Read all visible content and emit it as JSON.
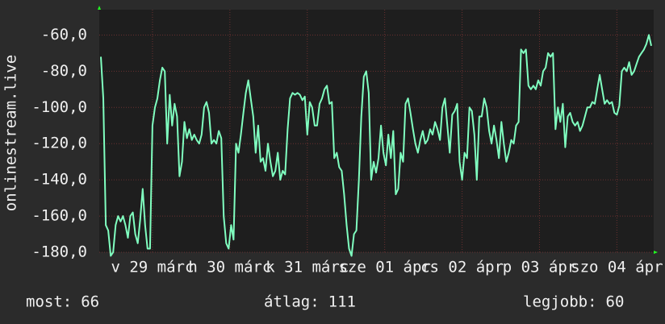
{
  "chart_data": {
    "type": "line",
    "y_label": "onlinestream.live",
    "color": "#80ffc0",
    "ylim": [
      -180,
      -46
    ],
    "yticks": [
      {
        "value": -60,
        "label": "-60,0"
      },
      {
        "value": -80,
        "label": "-80,0"
      },
      {
        "value": -100,
        "label": "-100,0"
      },
      {
        "value": -120,
        "label": "-120,0"
      },
      {
        "value": -140,
        "label": "-140,0"
      },
      {
        "value": -160,
        "label": "-160,0"
      },
      {
        "value": -180,
        "label": "-180,0"
      }
    ],
    "xlim": [
      0,
      224
    ],
    "xticks": [
      {
        "value": 21,
        "label": "v 29 márc"
      },
      {
        "value": 52.5,
        "label": "h 30 márc"
      },
      {
        "value": 84,
        "label": "k 31 márc"
      },
      {
        "value": 115.5,
        "label": "sze 01 ápr"
      },
      {
        "value": 147,
        "label": "cs 02 ápr"
      },
      {
        "value": 178.5,
        "label": "p 03 ápr"
      },
      {
        "value": 210,
        "label": "szo 04 ápr"
      }
    ],
    "grid": true,
    "values": [
      -72,
      -95,
      -165,
      -168,
      -182,
      -180,
      -165,
      -160,
      -163,
      -160,
      -165,
      -172,
      -160,
      -158,
      -170,
      -175,
      -162,
      -145,
      -165,
      -178,
      -178,
      -110,
      -100,
      -95,
      -85,
      -78,
      -80,
      -120,
      -93,
      -110,
      -98,
      -105,
      -138,
      -130,
      -108,
      -117,
      -112,
      -118,
      -115,
      -118,
      -120,
      -115,
      -100,
      -97,
      -103,
      -120,
      -118,
      -120,
      -113,
      -117,
      -160,
      -175,
      -178,
      -165,
      -173,
      -120,
      -125,
      -115,
      -103,
      -92,
      -85,
      -95,
      -105,
      -125,
      -110,
      -130,
      -128,
      -135,
      -120,
      -130,
      -138,
      -135,
      -125,
      -140,
      -135,
      -137,
      -112,
      -95,
      -92,
      -93,
      -92,
      -93,
      -96,
      -94,
      -115,
      -97,
      -100,
      -110,
      -110,
      -98,
      -95,
      -90,
      -88,
      -98,
      -97,
      -128,
      -125,
      -133,
      -135,
      -148,
      -165,
      -178,
      -182,
      -170,
      -168,
      -140,
      -105,
      -83,
      -80,
      -92,
      -140,
      -130,
      -136,
      -128,
      -110,
      -125,
      -132,
      -115,
      -128,
      -113,
      -148,
      -145,
      -125,
      -130,
      -98,
      -95,
      -103,
      -112,
      -120,
      -125,
      -118,
      -113,
      -120,
      -118,
      -112,
      -115,
      -108,
      -112,
      -118,
      -100,
      -95,
      -110,
      -125,
      -104,
      -102,
      -98,
      -130,
      -140,
      -125,
      -128,
      -100,
      -102,
      -115,
      -140,
      -105,
      -105,
      -95,
      -100,
      -113,
      -120,
      -110,
      -118,
      -128,
      -108,
      -120,
      -130,
      -125,
      -118,
      -120,
      -110,
      -108,
      -68,
      -70,
      -68,
      -88,
      -90,
      -88,
      -90,
      -85,
      -88,
      -80,
      -78,
      -70,
      -72,
      -70,
      -112,
      -100,
      -108,
      -98,
      -122,
      -105,
      -103,
      -108,
      -110,
      -108,
      -113,
      -110,
      -105,
      -100,
      -100,
      -97,
      -98,
      -90,
      -82,
      -90,
      -98,
      -96,
      -98,
      -97,
      -103,
      -104,
      -99,
      -80,
      -78,
      -80,
      -75,
      -82,
      -80,
      -76,
      -72,
      -70,
      -68,
      -65,
      -60,
      -66
    ],
    "summary": [
      {
        "label": "most:",
        "value": 66
      },
      {
        "label": "átlag:",
        "value": 111
      },
      {
        "label": "legjobb:",
        "value": 60
      }
    ]
  }
}
